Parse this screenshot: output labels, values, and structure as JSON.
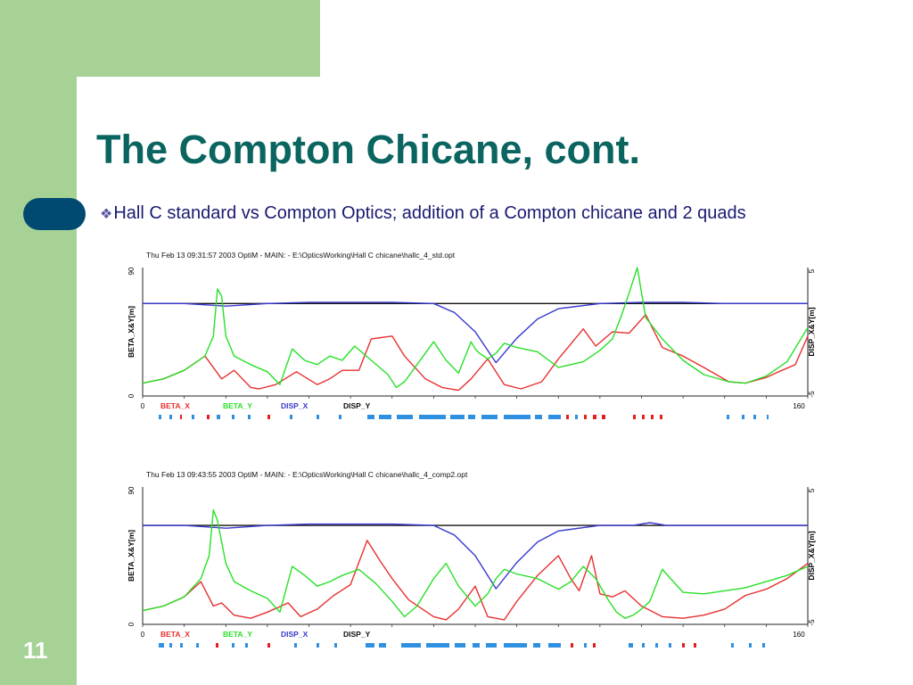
{
  "slide": {
    "title": "The Compton Chicane, cont.",
    "bullet": "Hall C standard vs Compton Optics; addition of a Compton chicane and 2 quads",
    "bullet_glyph": "❖",
    "slide_number": "11"
  },
  "colors": {
    "green": "#a6d296",
    "navy_pill": "#004a72",
    "title_teal": "#0a6560",
    "beta_x": "#e83030",
    "beta_y": "#28e028",
    "disp_x": "#3838d0",
    "disp_y": "#101010",
    "element_blue": "#2f8fe0",
    "element_red": "#e02020"
  },
  "chart_data": [
    {
      "type": "line",
      "header": "Thu Feb 13 09:31:57 2003     OptiM - MAIN: - E:\\OpticsWorking\\Hall C chicane\\hallc_4_std.opt",
      "ylabel": "BETA_X&Y[m]",
      "y2label": "DISP_X&Y[m]",
      "xlim": [
        0,
        160
      ],
      "ylim": [
        0,
        90
      ],
      "y2lim": [
        -5,
        5
      ],
      "x_ticks": [
        "0",
        "160"
      ],
      "y_ticks": [
        "0",
        "90"
      ],
      "y2_ticks": [
        "-5",
        "5"
      ],
      "legend": [
        "BETA_X",
        "BETA_Y",
        "DISP_X",
        "DISP_Y"
      ],
      "series": [
        {
          "name": "BETA_X",
          "axis": "left",
          "x": [
            0,
            5,
            10,
            15,
            19,
            22,
            26,
            28,
            32,
            37,
            42,
            45,
            48,
            52,
            55,
            60,
            63,
            68,
            72,
            76,
            79,
            83,
            87,
            91,
            96,
            100,
            106,
            109,
            113,
            117,
            121,
            125,
            130,
            135,
            141,
            145,
            150,
            153,
            157,
            160
          ],
          "y": [
            9,
            12,
            18,
            28,
            12,
            18,
            6,
            5,
            8,
            17,
            8,
            12,
            18,
            18,
            40,
            42,
            28,
            12,
            6,
            4,
            12,
            26,
            8,
            5,
            10,
            26,
            47,
            35,
            45,
            44,
            57,
            34,
            28,
            20,
            10,
            9,
            13,
            17,
            22,
            42
          ]
        },
        {
          "name": "BETA_Y",
          "axis": "left",
          "x": [
            0,
            5,
            10,
            15,
            17,
            18,
            19,
            20,
            22,
            26,
            30,
            33,
            36,
            39,
            42,
            45,
            48,
            51,
            55,
            59,
            61,
            63,
            66,
            70,
            73,
            76,
            79,
            80,
            81,
            83,
            85,
            87,
            90,
            95,
            100,
            106,
            110,
            113,
            115,
            117,
            119,
            121,
            125,
            130,
            135,
            141,
            145,
            150,
            155,
            160
          ],
          "y": [
            9,
            12,
            18,
            28,
            42,
            75,
            70,
            42,
            28,
            22,
            17,
            8,
            33,
            25,
            22,
            28,
            25,
            35,
            25,
            15,
            6,
            10,
            22,
            38,
            25,
            16,
            38,
            33,
            30,
            26,
            30,
            37,
            34,
            31,
            20,
            24,
            32,
            40,
            55,
            72,
            90,
            55,
            40,
            25,
            15,
            10,
            9,
            14,
            24,
            48
          ]
        },
        {
          "name": "DISP_X",
          "axis": "right",
          "x": [
            0,
            10,
            20,
            30,
            40,
            60,
            70,
            75,
            80,
            85,
            90,
            95,
            100,
            110,
            120,
            130,
            140,
            150,
            160
          ],
          "y": [
            2.2,
            2.2,
            2.0,
            2.2,
            2.3,
            2.3,
            2.2,
            1.5,
            0,
            -2.4,
            -0.5,
            1.0,
            1.8,
            2.2,
            2.3,
            2.3,
            2.2,
            2.2,
            2.2
          ]
        },
        {
          "name": "DISP_Y",
          "axis": "right",
          "x": [
            0,
            160
          ],
          "y": [
            2.2,
            2.2
          ]
        }
      ]
    },
    {
      "type": "line",
      "header": "Thu Feb 13 09:43:55 2003     OptiM - MAIN: - E:\\OpticsWorking\\Hall C chicane\\hallc_4_comp2.opt",
      "ylabel": "BETA_X&Y[m]",
      "y2label": "DISP_X&Y[m]",
      "xlim": [
        0,
        160
      ],
      "ylim": [
        0,
        90
      ],
      "y2lim": [
        -5,
        5
      ],
      "x_ticks": [
        "0",
        "160"
      ],
      "y_ticks": [
        "0",
        "90"
      ],
      "y2_ticks": [
        "-5",
        "5"
      ],
      "legend": [
        "BETA_X",
        "BETA_Y",
        "DISP_X",
        "DISP_Y"
      ],
      "series": [
        {
          "name": "BETA_X",
          "axis": "left",
          "x": [
            0,
            5,
            10,
            14,
            17,
            19,
            22,
            26,
            30,
            35,
            38,
            42,
            46,
            50,
            54,
            57,
            60,
            64,
            70,
            73,
            76,
            80,
            83,
            87,
            90,
            95,
            100,
            103,
            105,
            108,
            110,
            113,
            116,
            120,
            125,
            130,
            135,
            140,
            145,
            150,
            155,
            160
          ],
          "y": [
            9,
            12,
            18,
            28,
            12,
            14,
            6,
            4,
            8,
            14,
            5,
            10,
            19,
            26,
            55,
            42,
            30,
            16,
            5,
            3,
            10,
            25,
            5,
            3,
            15,
            32,
            45,
            30,
            22,
            45,
            20,
            18,
            22,
            12,
            5,
            4,
            6,
            10,
            19,
            23,
            30,
            40
          ]
        },
        {
          "name": "BETA_Y",
          "axis": "left",
          "x": [
            0,
            5,
            10,
            14,
            16,
            17,
            18,
            20,
            22,
            26,
            30,
            33,
            36,
            39,
            42,
            45,
            48,
            52,
            56,
            60,
            63,
            66,
            70,
            73,
            76,
            80,
            83,
            85,
            87,
            90,
            95,
            100,
            103,
            106,
            109,
            112,
            114,
            116,
            118,
            120,
            122,
            125,
            130,
            135,
            140,
            145,
            150,
            155,
            160
          ],
          "y": [
            9,
            12,
            18,
            30,
            45,
            75,
            68,
            40,
            28,
            22,
            17,
            8,
            38,
            32,
            25,
            28,
            32,
            36,
            27,
            15,
            5,
            12,
            30,
            40,
            25,
            12,
            20,
            30,
            36,
            33,
            30,
            23,
            28,
            38,
            30,
            16,
            8,
            4,
            6,
            10,
            15,
            36,
            21,
            20,
            22,
            24,
            28,
            32,
            38
          ]
        },
        {
          "name": "DISP_X",
          "axis": "right",
          "x": [
            0,
            10,
            20,
            30,
            40,
            60,
            70,
            75,
            80,
            85,
            90,
            95,
            100,
            110,
            118,
            122,
            126,
            130,
            140,
            150,
            160
          ],
          "y": [
            2.2,
            2.2,
            2.0,
            2.2,
            2.3,
            2.3,
            2.2,
            1.5,
            0,
            -2.4,
            -0.5,
            1.0,
            1.8,
            2.2,
            2.2,
            2.4,
            2.2,
            2.2,
            2.2,
            2.2,
            2.2
          ]
        },
        {
          "name": "DISP_Y",
          "axis": "right",
          "x": [
            0,
            160
          ],
          "y": [
            2.2,
            2.2
          ]
        }
      ]
    }
  ]
}
